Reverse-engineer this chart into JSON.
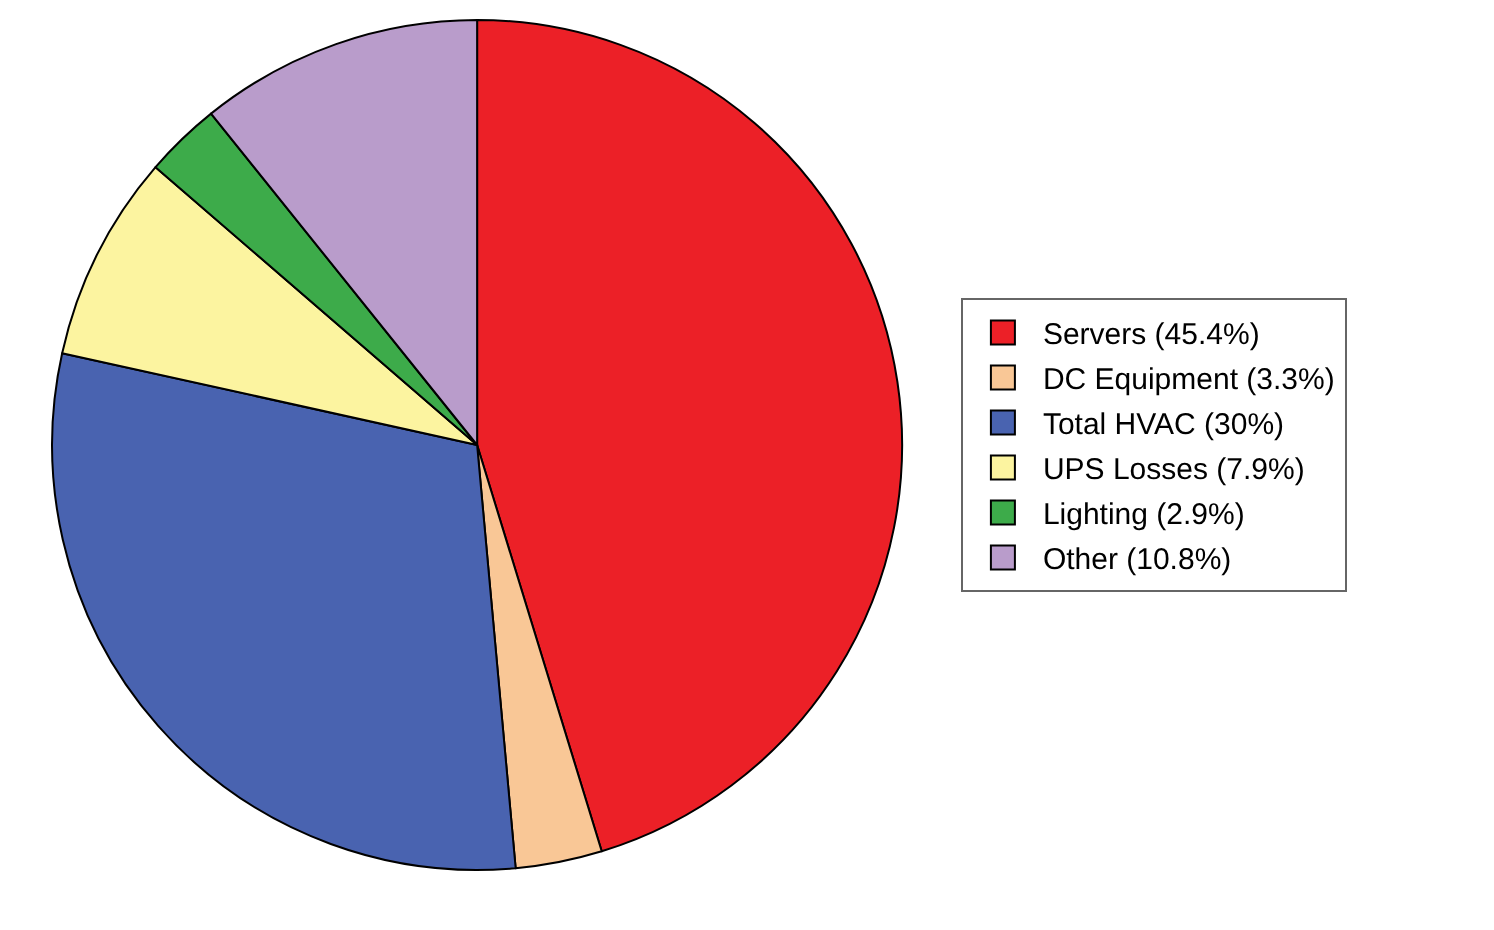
{
  "chart_data": {
    "type": "pie",
    "categories": [
      "Servers (45.4%)",
      "DC Equipment (3.3%)",
      "Total HVAC (30%)",
      "UPS Losses (7.9%)",
      "Lighting (2.9%)",
      "Other (10.8%)"
    ],
    "values": [
      45.4,
      3.3,
      30,
      7.9,
      2.9,
      10.8
    ],
    "colors": [
      "#ec2027",
      "#f9c796",
      "#4963b0",
      "#fcf4a0",
      "#3dab4a",
      "#b99ccb"
    ],
    "legend": "right"
  }
}
